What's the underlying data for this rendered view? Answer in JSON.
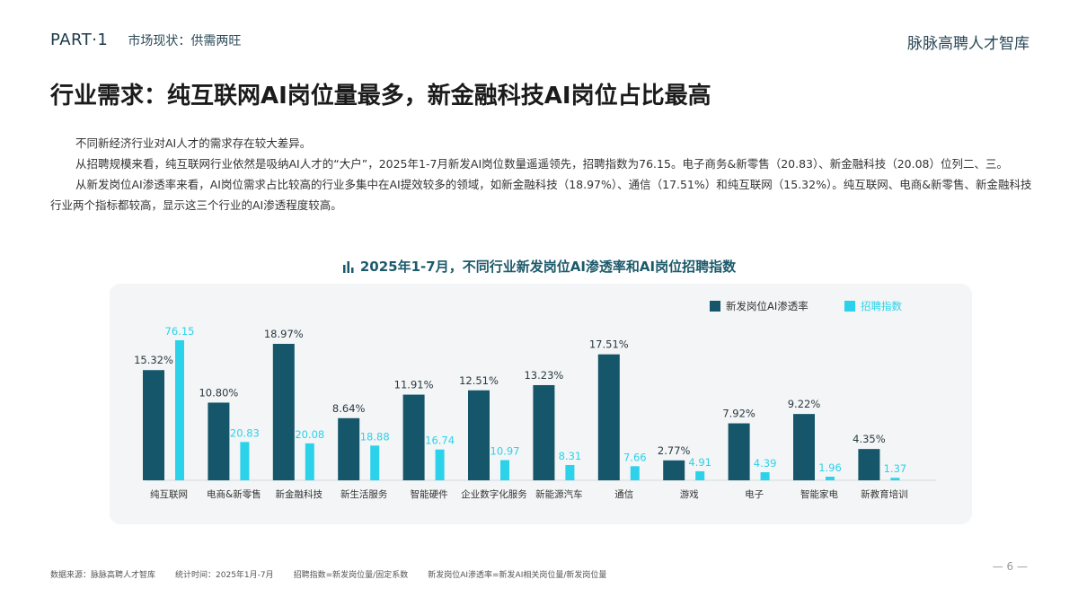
{
  "header": {
    "part": "PART·1",
    "section": "市场现状：供需两旺",
    "brand": "脉脉高聘人才智库"
  },
  "title": "行业需求：纯互联网AI岗位量最多，新金融科技AI岗位占比最高",
  "paragraphs": [
    "不同新经济行业对AI人才的需求存在较大差异。",
    "从招聘规模来看，纯互联网行业依然是吸纳AI人才的“大户”，2025年1-7月新发AI岗位数量遥遥领先，招聘指数为76.15。电子商务&新零售（20.83）、新金融科技（20.08）位列二、三。",
    "从新发岗位AI渗透率来看，AI岗位需求占比较高的行业多集中在AI提效较多的领域，如新金融科技（18.97%）、通信（17.51%）和纯互联网（15.32%）。纯互联网、电商&新零售、新金融科技行业两个指标都较高，显示这三个行业的AI渗透程度较高。"
  ],
  "chart_data": {
    "type": "bar",
    "title": "2025年1-7月，不同行业新发岗位AI渗透率和AI岗位招聘指数",
    "categories": [
      "纯互联网",
      "电商&新零售",
      "新金融科技",
      "新生活服务",
      "智能硬件",
      "企业数字化服务",
      "新能源汽车",
      "通信",
      "游戏",
      "电子",
      "智能家电",
      "新教育培训"
    ],
    "series": [
      {
        "name": "新发岗位AI渗透率",
        "values": [
          15.32,
          10.8,
          18.97,
          8.64,
          11.91,
          12.51,
          13.23,
          17.51,
          2.77,
          7.92,
          9.22,
          4.35
        ],
        "labels": [
          "15.32%",
          "10.80%",
          "18.97%",
          "8.64%",
          "11.91%",
          "12.51%",
          "13.23%",
          "17.51%",
          "2.77%",
          "7.92%",
          "9.22%",
          "4.35%"
        ],
        "color": "#15566b"
      },
      {
        "name": "招聘指数",
        "values": [
          76.15,
          20.83,
          20.08,
          18.88,
          16.74,
          10.97,
          8.31,
          7.66,
          4.91,
          4.39,
          1.96,
          1.37
        ],
        "labels": [
          "76.15",
          "20.83",
          "20.08",
          "18.88",
          "16.74",
          "10.97",
          "8.31",
          "7.66",
          "4.91",
          "4.39",
          "1.96",
          "1.37"
        ],
        "color": "#2bd2ea"
      }
    ],
    "legend_position": "top-right",
    "grid": false
  },
  "footer": {
    "source": "数据来源：脉脉高聘人才智库",
    "period": "统计时间：2025年1月-7月",
    "note1": "招聘指数=新发岗位量/固定系数",
    "note2": "新发岗位AI渗透率=新发AI相关岗位量/新发岗位量"
  },
  "page_number": "— 6 —"
}
